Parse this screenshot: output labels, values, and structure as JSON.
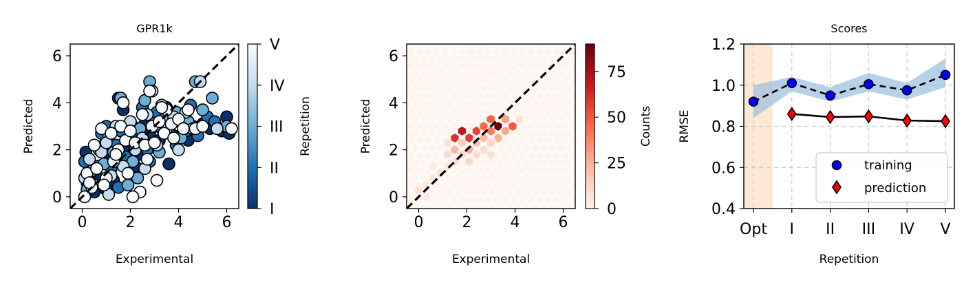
{
  "chart_data": [
    {
      "type": "scatter",
      "title": "GPR1k",
      "xlabel": "Experimental",
      "ylabel": "Predicted",
      "xlim": [
        -0.5,
        6.5
      ],
      "ylim": [
        -0.5,
        6.5
      ],
      "xticks": [
        "0",
        "2",
        "4",
        "6"
      ],
      "yticks": [
        "0",
        "2",
        "4",
        "6"
      ],
      "reference_line": "y = x (dashed black)",
      "colorbar": {
        "label": "Repetition",
        "ticks": [
          "I",
          "II",
          "III",
          "IV",
          "V"
        ],
        "colormap": "Blues_r"
      },
      "series": [
        {
          "points": [
            [
              0.15,
              1.9
            ],
            [
              0.2,
              0.6
            ],
            [
              0.3,
              1.2
            ],
            [
              0.5,
              0.2
            ],
            [
              0.7,
              0.8
            ],
            [
              0.9,
              2.2
            ],
            [
              1.1,
              1.6
            ],
            [
              1.3,
              0.7
            ],
            [
              1.5,
              4.2
            ],
            [
              1.7,
              3.7
            ],
            [
              1.9,
              2.0
            ],
            [
              2.1,
              3.0
            ],
            [
              2.4,
              1.8
            ],
            [
              2.6,
              3.1
            ],
            [
              2.8,
              2.7
            ],
            [
              3.0,
              3.4
            ],
            [
              3.2,
              2.4
            ],
            [
              3.5,
              3.8
            ],
            [
              3.8,
              2.6
            ],
            [
              4.2,
              3.3
            ],
            [
              4.6,
              3.0
            ],
            [
              5.0,
              3.1
            ],
            [
              5.3,
              2.9
            ],
            [
              5.8,
              2.8
            ],
            [
              6.0,
              3.4
            ],
            [
              6.1,
              2.7
            ],
            [
              3.6,
              1.4
            ],
            [
              4.4,
              2.4
            ],
            [
              2.2,
              1.3
            ],
            [
              1.0,
              0.3
            ]
          ]
        },
        {
          "points": [
            [
              0.1,
              1.5
            ],
            [
              0.3,
              0.9
            ],
            [
              0.6,
              1.3
            ],
            [
              0.8,
              2.7
            ],
            [
              1.0,
              3.0
            ],
            [
              1.2,
              1.2
            ],
            [
              1.4,
              2.2
            ],
            [
              1.6,
              2.8
            ],
            [
              1.8,
              1.7
            ],
            [
              2.0,
              2.6
            ],
            [
              2.3,
              2.2
            ],
            [
              2.5,
              3.8
            ],
            [
              2.7,
              2.0
            ],
            [
              2.9,
              3.3
            ],
            [
              3.1,
              3.6
            ],
            [
              3.3,
              2.9
            ],
            [
              3.7,
              3.1
            ],
            [
              4.0,
              3.5
            ],
            [
              4.3,
              2.8
            ],
            [
              4.5,
              3.9
            ],
            [
              4.8,
              2.6
            ],
            [
              5.2,
              3.4
            ],
            [
              5.5,
              3.2
            ],
            [
              3.9,
              2.2
            ],
            [
              2.8,
              1.5
            ],
            [
              1.5,
              0.4
            ]
          ]
        },
        {
          "points": [
            [
              0.2,
              0.3
            ],
            [
              0.4,
              1.1
            ],
            [
              0.7,
              2.0
            ],
            [
              0.9,
              1.4
            ],
            [
              1.1,
              2.6
            ],
            [
              1.3,
              1.9
            ],
            [
              1.6,
              4.2
            ],
            [
              1.8,
              2.4
            ],
            [
              2.1,
              1.5
            ],
            [
              2.4,
              2.9
            ],
            [
              2.6,
              4.1
            ],
            [
              2.8,
              4.9
            ],
            [
              3.0,
              3.0
            ],
            [
              3.2,
              1.9
            ],
            [
              3.4,
              3.3
            ],
            [
              3.6,
              2.7
            ],
            [
              3.9,
              3.6
            ],
            [
              4.1,
              2.5
            ],
            [
              4.4,
              3.2
            ],
            [
              4.7,
              4.9
            ],
            [
              5.0,
              3.7
            ],
            [
              5.4,
              4.2
            ],
            [
              6.0,
              3.0
            ],
            [
              2.3,
              0.8
            ],
            [
              1.9,
              0.5
            ]
          ]
        },
        {
          "points": [
            [
              0.1,
              0.8
            ],
            [
              0.3,
              1.6
            ],
            [
              0.5,
              0.5
            ],
            [
              0.8,
              1.9
            ],
            [
              1.0,
              2.3
            ],
            [
              1.2,
              0.9
            ],
            [
              1.4,
              3.0
            ],
            [
              1.7,
              1.3
            ],
            [
              2.0,
              3.2
            ],
            [
              2.2,
              2.0
            ],
            [
              2.5,
              2.5
            ],
            [
              2.7,
              3.5
            ],
            [
              2.9,
              4.5
            ],
            [
              3.1,
              2.2
            ],
            [
              3.3,
              3.9
            ],
            [
              3.5,
              2.9
            ],
            [
              3.8,
              3.4
            ],
            [
              4.0,
              2.0
            ],
            [
              4.3,
              3.6
            ],
            [
              4.6,
              2.9
            ],
            [
              4.9,
              4.9
            ],
            [
              5.6,
              2.9
            ],
            [
              1.1,
              0.1
            ],
            [
              2.6,
              1.2
            ]
          ]
        },
        {
          "points": [
            [
              0.1,
              0.0
            ],
            [
              0.2,
              1.0
            ],
            [
              0.4,
              0.4
            ],
            [
              0.6,
              1.2
            ],
            [
              0.8,
              2.9
            ],
            [
              1.0,
              0.8
            ],
            [
              1.2,
              2.7
            ],
            [
              1.3,
              1.5
            ],
            [
              1.5,
              2.0
            ],
            [
              1.6,
              3.0
            ],
            [
              1.8,
              2.4
            ],
            [
              1.9,
              1.0
            ],
            [
              2.0,
              2.8
            ],
            [
              2.2,
              2.3
            ],
            [
              2.4,
              0.2
            ],
            [
              2.5,
              3.5
            ],
            [
              2.6,
              2.2
            ],
            [
              2.7,
              1.6
            ],
            [
              2.8,
              4.5
            ],
            [
              2.9,
              3.0
            ],
            [
              3.0,
              2.3
            ],
            [
              3.1,
              0.7
            ],
            [
              3.2,
              3.2
            ],
            [
              3.4,
              2.7
            ],
            [
              3.5,
              3.7
            ],
            [
              3.7,
              3.1
            ],
            [
              3.8,
              2.5
            ],
            [
              4.0,
              3.3
            ],
            [
              4.2,
              2.9
            ],
            [
              4.4,
              3.7
            ],
            [
              4.7,
              2.9
            ],
            [
              5.0,
              3.0
            ],
            [
              6.2,
              2.9
            ],
            [
              2.1,
              0.0
            ],
            [
              0.9,
              0.5
            ],
            [
              1.7,
              4.0
            ],
            [
              0.3,
              0.6
            ],
            [
              0.5,
              2.2
            ],
            [
              1.4,
              1.8
            ],
            [
              3.3,
              3.8
            ]
          ]
        }
      ]
    },
    {
      "type": "heatmap",
      "xlabel": "Experimental",
      "ylabel": "Predicted",
      "xlim": [
        -0.5,
        6.5
      ],
      "ylim": [
        -0.5,
        6.5
      ],
      "xticks": [
        "0",
        "2",
        "4",
        "6"
      ],
      "yticks": [
        "0",
        "2",
        "4",
        "6"
      ],
      "reference_line": "y = x (dashed black)",
      "colorbar": {
        "label": "Counts",
        "ticks": [
          "0",
          "25",
          "50",
          "75"
        ],
        "vmin": 0,
        "vmax": 90,
        "colormap": "Reds"
      },
      "cells": [
        {
          "x": 0.0,
          "y": 0.3,
          "count": 8
        },
        {
          "x": 0.3,
          "y": 0.0,
          "count": 5
        },
        {
          "x": 0.3,
          "y": 0.5,
          "count": 6
        },
        {
          "x": 0.6,
          "y": 0.8,
          "count": 7
        },
        {
          "x": 0.6,
          "y": 1.3,
          "count": 5
        },
        {
          "x": 0.9,
          "y": 1.0,
          "count": 8
        },
        {
          "x": 1.2,
          "y": 1.3,
          "count": 6
        },
        {
          "x": 1.2,
          "y": 1.8,
          "count": 10
        },
        {
          "x": 1.2,
          "y": 2.3,
          "count": 8
        },
        {
          "x": 1.5,
          "y": 2.0,
          "count": 22
        },
        {
          "x": 1.5,
          "y": 2.5,
          "count": 60
        },
        {
          "x": 1.8,
          "y": 2.3,
          "count": 15
        },
        {
          "x": 1.8,
          "y": 2.8,
          "count": 70
        },
        {
          "x": 2.1,
          "y": 2.5,
          "count": 58
        },
        {
          "x": 2.1,
          "y": 2.0,
          "count": 25
        },
        {
          "x": 2.4,
          "y": 2.8,
          "count": 55
        },
        {
          "x": 2.4,
          "y": 2.3,
          "count": 20
        },
        {
          "x": 2.7,
          "y": 2.5,
          "count": 22
        },
        {
          "x": 2.7,
          "y": 3.0,
          "count": 45
        },
        {
          "x": 3.0,
          "y": 3.3,
          "count": 48
        },
        {
          "x": 3.0,
          "y": 2.8,
          "count": 40
        },
        {
          "x": 3.3,
          "y": 3.0,
          "count": 90
        },
        {
          "x": 3.3,
          "y": 2.5,
          "count": 25
        },
        {
          "x": 3.6,
          "y": 2.8,
          "count": 28
        },
        {
          "x": 3.6,
          "y": 3.3,
          "count": 30
        },
        {
          "x": 3.9,
          "y": 3.0,
          "count": 50
        },
        {
          "x": 4.2,
          "y": 3.3,
          "count": 8
        },
        {
          "x": 2.1,
          "y": 1.5,
          "count": 12
        },
        {
          "x": 1.8,
          "y": 1.8,
          "count": 9
        },
        {
          "x": 2.7,
          "y": 2.0,
          "count": 10
        },
        {
          "x": 3.0,
          "y": 2.3,
          "count": 12
        },
        {
          "x": 1.5,
          "y": 1.5,
          "count": 7
        },
        {
          "x": 2.4,
          "y": 1.8,
          "count": 10
        },
        {
          "x": 3.0,
          "y": 1.8,
          "count": 8
        }
      ]
    },
    {
      "type": "line",
      "title": "Scores",
      "xlabel": "Repetition",
      "ylabel": "RMSE",
      "categories": [
        "Opt",
        "I",
        "II",
        "III",
        "IV",
        "V"
      ],
      "ylim": [
        0.4,
        1.2
      ],
      "yticks": [
        "0.4",
        "0.6",
        "0.8",
        "1.0",
        "1.2"
      ],
      "grid": true,
      "legend_position": "bottom-right",
      "highlight_band": {
        "category": "Opt",
        "color": "#fde8d4"
      },
      "series": [
        {
          "name": "training",
          "values": [
            0.92,
            1.01,
            0.95,
            1.005,
            0.975,
            1.05
          ],
          "band_low": [
            0.84,
            0.97,
            0.92,
            0.97,
            0.93,
            0.99
          ],
          "band_high": [
            1.0,
            1.04,
            0.99,
            1.06,
            1.01,
            1.13
          ],
          "color": "#0000ff",
          "marker": "circle",
          "line": "dashed"
        },
        {
          "name": "prediction",
          "values": [
            null,
            0.86,
            0.845,
            0.848,
            0.828,
            0.825
          ],
          "color": "#ff0000",
          "marker": "diamond",
          "line": "solid"
        }
      ]
    }
  ]
}
